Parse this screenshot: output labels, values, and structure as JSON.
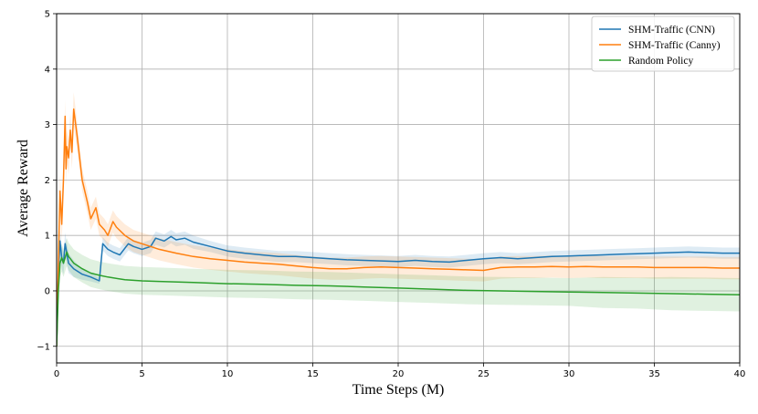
{
  "chart_data": {
    "type": "line",
    "title": "",
    "xlabel": "Time Steps (M)",
    "ylabel": "Average Reward",
    "xlim": [
      0,
      40
    ],
    "ylim": [
      -1.3,
      5
    ],
    "xticks": [
      0,
      5,
      10,
      15,
      20,
      25,
      30,
      35,
      40
    ],
    "yticks": [
      -1,
      0,
      1,
      2,
      3,
      4,
      5
    ],
    "xtick_labels": [
      "0",
      "5",
      "10",
      "15",
      "20",
      "25",
      "30",
      "35",
      "40"
    ],
    "ytick_labels": [
      "−1",
      "0",
      "1",
      "2",
      "3",
      "4",
      "5"
    ],
    "grid": true,
    "legend_position": "top-right",
    "series": [
      {
        "name": "SHM-Traffic (CNN)",
        "color": "#1f77b4",
        "x": [
          0,
          0.1,
          0.2,
          0.3,
          0.4,
          0.5,
          0.7,
          1.0,
          1.5,
          2.0,
          2.5,
          2.7,
          3.0,
          3.3,
          3.7,
          4.2,
          4.5,
          5.0,
          5.5,
          5.8,
          6.3,
          6.7,
          7.0,
          7.5,
          8.0,
          9.0,
          10.0,
          11.0,
          12.0,
          13.0,
          14.0,
          15.0,
          16.0,
          17.0,
          18.0,
          19.0,
          20.0,
          21.0,
          22.0,
          23.0,
          24.0,
          25.0,
          26.0,
          27.0,
          28.0,
          29.0,
          30.0,
          31.0,
          32.0,
          33.0,
          34.0,
          35.0,
          36.0,
          37.0,
          38.0,
          39.0,
          40.0
        ],
        "y": [
          -1.0,
          0.3,
          0.9,
          0.6,
          0.5,
          0.85,
          0.5,
          0.4,
          0.3,
          0.25,
          0.18,
          0.85,
          0.75,
          0.7,
          0.65,
          0.85,
          0.8,
          0.75,
          0.8,
          0.95,
          0.9,
          0.98,
          0.92,
          0.95,
          0.88,
          0.8,
          0.72,
          0.68,
          0.65,
          0.62,
          0.62,
          0.6,
          0.58,
          0.56,
          0.55,
          0.54,
          0.53,
          0.55,
          0.53,
          0.52,
          0.55,
          0.58,
          0.6,
          0.58,
          0.6,
          0.62,
          0.63,
          0.64,
          0.65,
          0.66,
          0.67,
          0.68,
          0.69,
          0.7,
          0.69,
          0.68,
          0.68
        ],
        "band": [
          0.0,
          0.15,
          0.2,
          0.2,
          0.2,
          0.2,
          0.18,
          0.15,
          0.1,
          0.08,
          0.05,
          0.12,
          0.12,
          0.12,
          0.12,
          0.12,
          0.12,
          0.12,
          0.12,
          0.12,
          0.12,
          0.12,
          0.12,
          0.12,
          0.12,
          0.1,
          0.1,
          0.1,
          0.1,
          0.1,
          0.1,
          0.1,
          0.1,
          0.1,
          0.1,
          0.1,
          0.1,
          0.1,
          0.1,
          0.1,
          0.1,
          0.1,
          0.1,
          0.1,
          0.1,
          0.1,
          0.1,
          0.1,
          0.1,
          0.1,
          0.1,
          0.1,
          0.1,
          0.1,
          0.1,
          0.1,
          0.1
        ]
      },
      {
        "name": "SHM-Traffic (Canny)",
        "color": "#ff7f0e",
        "x": [
          0,
          0.1,
          0.2,
          0.3,
          0.4,
          0.5,
          0.55,
          0.6,
          0.7,
          0.8,
          0.9,
          1.0,
          1.2,
          1.5,
          1.8,
          2.0,
          2.3,
          2.5,
          2.8,
          3.0,
          3.3,
          3.5,
          4.0,
          4.5,
          5.0,
          5.5,
          6.0,
          7.0,
          8.0,
          9.0,
          10.0,
          11.0,
          12.0,
          13.0,
          14.0,
          15.0,
          16.0,
          17.0,
          18.0,
          19.0,
          20.0,
          21.0,
          22.0,
          23.0,
          24.0,
          25.0,
          26.0,
          27.0,
          28.0,
          29.0,
          30.0,
          31.0,
          32.0,
          33.0,
          34.0,
          35.0,
          36.0,
          37.0,
          38.0,
          39.0,
          40.0
        ],
        "y": [
          -1.0,
          0.5,
          1.8,
          1.2,
          2.0,
          3.15,
          2.2,
          2.6,
          2.4,
          2.9,
          2.5,
          3.28,
          2.8,
          2.0,
          1.6,
          1.3,
          1.5,
          1.2,
          1.1,
          1.0,
          1.25,
          1.15,
          1.0,
          0.9,
          0.85,
          0.8,
          0.75,
          0.68,
          0.62,
          0.58,
          0.55,
          0.52,
          0.5,
          0.48,
          0.45,
          0.42,
          0.4,
          0.4,
          0.42,
          0.43,
          0.42,
          0.41,
          0.4,
          0.39,
          0.38,
          0.37,
          0.42,
          0.43,
          0.43,
          0.44,
          0.43,
          0.44,
          0.43,
          0.43,
          0.43,
          0.42,
          0.42,
          0.42,
          0.42,
          0.41,
          0.41
        ],
        "band": [
          0.0,
          0.3,
          0.3,
          0.3,
          0.3,
          0.3,
          0.3,
          0.3,
          0.3,
          0.3,
          0.3,
          0.3,
          0.25,
          0.2,
          0.2,
          0.2,
          0.2,
          0.2,
          0.2,
          0.2,
          0.2,
          0.2,
          0.2,
          0.2,
          0.2,
          0.2,
          0.2,
          0.2,
          0.2,
          0.2,
          0.2,
          0.2,
          0.2,
          0.2,
          0.2,
          0.2,
          0.2,
          0.2,
          0.2,
          0.2,
          0.2,
          0.2,
          0.2,
          0.2,
          0.2,
          0.2,
          0.2,
          0.2,
          0.2,
          0.2,
          0.2,
          0.2,
          0.2,
          0.2,
          0.2,
          0.2,
          0.2,
          0.2,
          0.2,
          0.2,
          0.2
        ]
      },
      {
        "name": "Random Policy",
        "color": "#2ca02c",
        "x": [
          0,
          0.1,
          0.2,
          0.3,
          0.4,
          0.5,
          0.6,
          0.7,
          0.8,
          1.0,
          1.5,
          2.0,
          2.5,
          3.0,
          4.0,
          5.0,
          6.0,
          8.0,
          10.0,
          12.0,
          14.0,
          16.0,
          18.0,
          20.0,
          22.0,
          24.0,
          26.0,
          28.0,
          30.0,
          32.0,
          34.0,
          36.0,
          38.0,
          40.0
        ],
        "y": [
          -1.0,
          0.0,
          0.5,
          0.6,
          0.5,
          0.6,
          0.7,
          0.62,
          0.58,
          0.5,
          0.4,
          0.32,
          0.28,
          0.25,
          0.2,
          0.18,
          0.17,
          0.15,
          0.13,
          0.12,
          0.1,
          0.09,
          0.07,
          0.05,
          0.03,
          0.01,
          0.0,
          -0.01,
          -0.02,
          -0.03,
          -0.04,
          -0.05,
          -0.06,
          -0.07
        ],
        "band": [
          0.0,
          0.2,
          0.25,
          0.25,
          0.25,
          0.25,
          0.25,
          0.25,
          0.25,
          0.25,
          0.25,
          0.25,
          0.25,
          0.25,
          0.25,
          0.25,
          0.25,
          0.25,
          0.25,
          0.25,
          0.25,
          0.25,
          0.25,
          0.25,
          0.25,
          0.25,
          0.25,
          0.25,
          0.25,
          0.28,
          0.28,
          0.3,
          0.3,
          0.3
        ]
      }
    ]
  }
}
